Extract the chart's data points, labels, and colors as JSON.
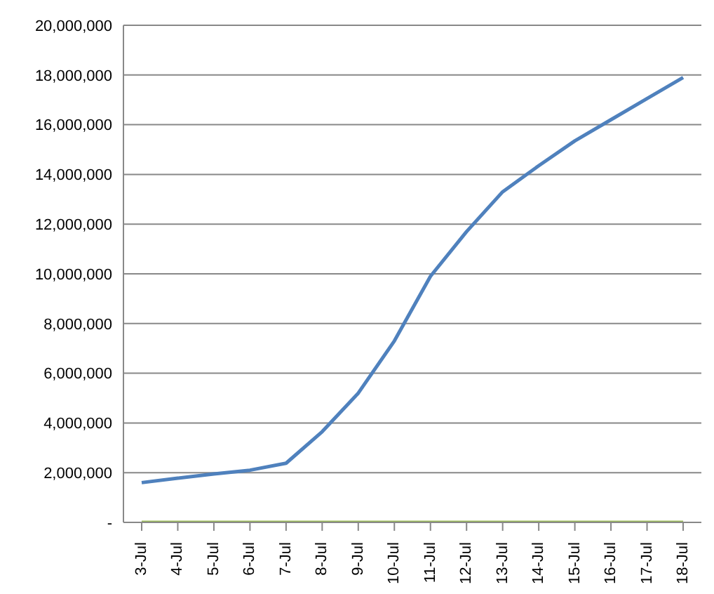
{
  "chart_data": {
    "type": "line",
    "categories": [
      "3-Jul",
      "4-Jul",
      "5-Jul",
      "6-Jul",
      "7-Jul",
      "8-Jul",
      "9-Jul",
      "10-Jul",
      "11-Jul",
      "12-Jul",
      "13-Jul",
      "14-Jul",
      "15-Jul",
      "16-Jul",
      "17-Jul",
      "18-Jul"
    ],
    "series": [
      {
        "color": "#4f81bd",
        "values": [
          1600000,
          1780000,
          1950000,
          2100000,
          2380000,
          3650000,
          5200000,
          7300000,
          9900000,
          11700000,
          13300000,
          14350000,
          15350000,
          16200000,
          17050000,
          17900000
        ]
      },
      {
        "color": "#9bbb59",
        "values": [
          0,
          0,
          0,
          0,
          0,
          0,
          0,
          0,
          0,
          0,
          0,
          0,
          0,
          0,
          0,
          0
        ]
      }
    ],
    "ylim": [
      0,
      20000000
    ],
    "yticks": [
      {
        "value": 0,
        "label": "-"
      },
      {
        "value": 2000000,
        "label": "2,000,000"
      },
      {
        "value": 4000000,
        "label": "4,000,000"
      },
      {
        "value": 6000000,
        "label": "6,000,000"
      },
      {
        "value": 8000000,
        "label": "8,000,000"
      },
      {
        "value": 10000000,
        "label": "10,000,000"
      },
      {
        "value": 12000000,
        "label": "12,000,000"
      },
      {
        "value": 14000000,
        "label": "14,000,000"
      },
      {
        "value": 16000000,
        "label": "16,000,000"
      },
      {
        "value": 18000000,
        "label": "18,000,000"
      },
      {
        "value": 20000000,
        "label": "20,000,000"
      }
    ],
    "grid": "y",
    "legend": false,
    "marker": "none"
  }
}
